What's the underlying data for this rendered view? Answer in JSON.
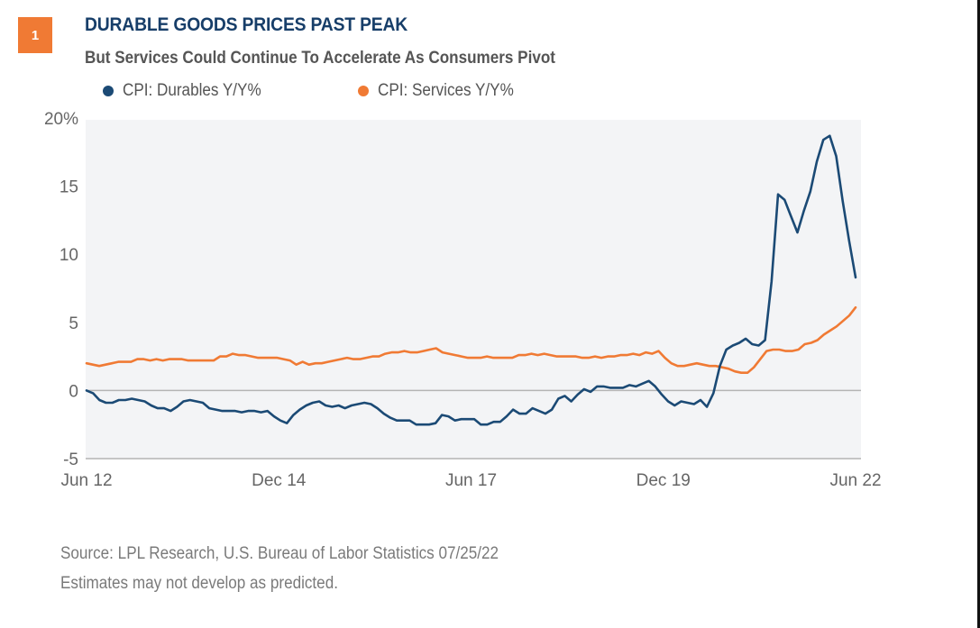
{
  "badge": {
    "number": "1",
    "color": "#f07a34"
  },
  "title": "DURABLE GOODS PRICES PAST PEAK",
  "subtitle": "But Services Could Continue To Accelerate As Consumers Pivot",
  "footer": {
    "source": "Source: LPL Research, U.S. Bureau of Labor Statistics  07/25/22",
    "disclaimer": "Estimates may not develop as predicted."
  },
  "chart_data": {
    "type": "line",
    "title": "DURABLE GOODS PRICES PAST PEAK",
    "subtitle": "But Services Could Continue To Accelerate As Consumers Pivot",
    "xlabel": "",
    "ylabel": "",
    "x_start": "Jun 2012",
    "x_end": "Jun 2022",
    "x_frequency": "monthly",
    "x_ticks": [
      "Jun 12",
      "Dec 14",
      "Jun 17",
      "Dec 19",
      "Jun 22"
    ],
    "x_tick_month_index": [
      0,
      30,
      60,
      90,
      120
    ],
    "y_ticks": [
      -5,
      0,
      5,
      10,
      15,
      20
    ],
    "y_tick_labels": [
      "-5",
      "0",
      "5",
      "10",
      "15",
      "20%"
    ],
    "ylim": [
      -5,
      20
    ],
    "grid": false,
    "zero_line": true,
    "legend_position": "top-left",
    "series": [
      {
        "name": "CPI: Durables Y/Y%",
        "color": "#1b4a75",
        "values": [
          0,
          -0.2,
          -0.7,
          -0.9,
          -0.9,
          -0.7,
          -0.7,
          -0.6,
          -0.7,
          -0.8,
          -1.1,
          -1.3,
          -1.3,
          -1.5,
          -1.2,
          -0.8,
          -0.7,
          -0.8,
          -0.9,
          -1.3,
          -1.4,
          -1.5,
          -1.5,
          -1.5,
          -1.6,
          -1.5,
          -1.5,
          -1.6,
          -1.5,
          -1.9,
          -2.2,
          -2.4,
          -1.8,
          -1.4,
          -1.1,
          -0.9,
          -0.8,
          -1.1,
          -1.2,
          -1.1,
          -1.3,
          -1.1,
          -1.0,
          -0.9,
          -1.0,
          -1.3,
          -1.7,
          -2.0,
          -2.2,
          -2.2,
          -2.2,
          -2.5,
          -2.5,
          -2.5,
          -2.4,
          -1.8,
          -1.9,
          -2.2,
          -2.1,
          -2.1,
          -2.1,
          -2.5,
          -2.5,
          -2.3,
          -2.3,
          -1.9,
          -1.4,
          -1.7,
          -1.7,
          -1.3,
          -1.5,
          -1.7,
          -1.4,
          -0.6,
          -0.4,
          -0.8,
          -0.3,
          0.1,
          -0.1,
          0.3,
          0.3,
          0.2,
          0.2,
          0.2,
          0.4,
          0.3,
          0.5,
          0.7,
          0.3,
          -0.3,
          -0.8,
          -1.1,
          -0.8,
          -0.9,
          -1.0,
          -0.7,
          -1.2,
          -0.2,
          1.8,
          3.0,
          3.3,
          3.5,
          3.8,
          3.4,
          3.3,
          3.7,
          8.0,
          14.4,
          14.0,
          12.8,
          11.6,
          13.2,
          14.6,
          16.8,
          18.4,
          18.7,
          17.2,
          13.9,
          11.0,
          8.3
        ]
      },
      {
        "name": "CPI: Services Y/Y%",
        "color": "#f07a34",
        "values": [
          2.0,
          1.9,
          1.8,
          1.9,
          2.0,
          2.1,
          2.1,
          2.1,
          2.3,
          2.3,
          2.2,
          2.3,
          2.2,
          2.3,
          2.3,
          2.3,
          2.2,
          2.2,
          2.2,
          2.2,
          2.2,
          2.5,
          2.5,
          2.7,
          2.6,
          2.6,
          2.5,
          2.4,
          2.4,
          2.4,
          2.4,
          2.3,
          2.2,
          1.9,
          2.1,
          1.9,
          2.0,
          2.0,
          2.1,
          2.2,
          2.3,
          2.4,
          2.3,
          2.3,
          2.4,
          2.5,
          2.5,
          2.7,
          2.8,
          2.8,
          2.9,
          2.8,
          2.8,
          2.9,
          3.0,
          3.1,
          2.8,
          2.7,
          2.6,
          2.5,
          2.4,
          2.4,
          2.4,
          2.5,
          2.4,
          2.4,
          2.4,
          2.4,
          2.6,
          2.6,
          2.7,
          2.6,
          2.7,
          2.6,
          2.5,
          2.5,
          2.5,
          2.5,
          2.4,
          2.4,
          2.5,
          2.4,
          2.5,
          2.5,
          2.6,
          2.6,
          2.7,
          2.6,
          2.8,
          2.7,
          2.9,
          2.4,
          2.0,
          1.8,
          1.8,
          1.9,
          2.0,
          1.9,
          1.8,
          1.8,
          1.7,
          1.6,
          1.4,
          1.3,
          1.3,
          1.7,
          2.3,
          2.9,
          3.0,
          3.0,
          2.9,
          2.9,
          3.0,
          3.4,
          3.5,
          3.7,
          4.1,
          4.4,
          4.7,
          5.1,
          5.5,
          6.1
        ]
      }
    ]
  }
}
